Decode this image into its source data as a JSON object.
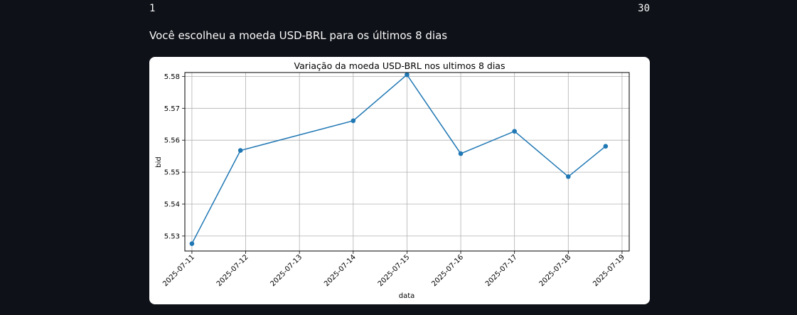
{
  "slider": {
    "min_label": "1",
    "max_label": "30"
  },
  "subtitle": "Você escolheu a moeda USD-BRL para os últimos 8 dias",
  "chart_data": {
    "type": "line",
    "title": "Variação da moeda USD-BRL nos ultimos 8 dias",
    "xlabel": "data",
    "ylabel": "bid",
    "x_ticks": [
      "2025-07-11",
      "2025-07-12",
      "2025-07-13",
      "2025-07-14",
      "2025-07-15",
      "2025-07-16",
      "2025-07-17",
      "2025-07-18",
      "2025-07-19"
    ],
    "y_ticks": [
      5.53,
      5.54,
      5.55,
      5.56,
      5.57,
      5.58
    ],
    "ylim": [
      5.5253,
      5.5812
    ],
    "xlim": [
      "2025-07-10T20:51",
      "2025-07-19T03:12"
    ],
    "grid": true,
    "series": [
      {
        "color": "#1f77b4",
        "x": [
          "2025-07-11T00:00",
          "2025-07-11T21:40",
          "2025-07-14T00:00",
          "2025-07-15T00:00",
          "2025-07-16T00:00",
          "2025-07-17T00:00",
          "2025-07-18T00:00",
          "2025-07-18T16:40"
        ],
        "y": [
          5.5276,
          5.5568,
          5.5661,
          5.5805,
          5.5558,
          5.5628,
          5.5486,
          5.5581
        ]
      }
    ]
  }
}
